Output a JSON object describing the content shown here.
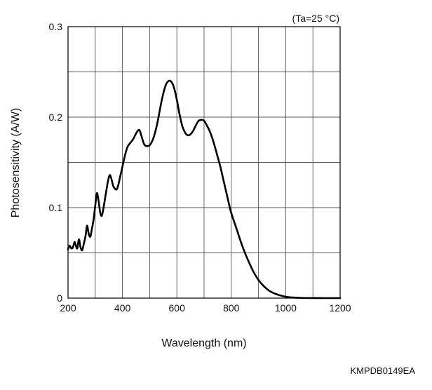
{
  "chart_data": {
    "type": "line",
    "condition_note": "(Ta=25 °C)",
    "document_code": "KMPDB0149EA",
    "xlabel": "Wavelength (nm)",
    "ylabel": "Photosensitivity (A/W)",
    "xlim": [
      200,
      1200
    ],
    "ylim": [
      0,
      0.3
    ],
    "x_ticks": [
      200,
      400,
      600,
      800,
      1000,
      1200
    ],
    "x_tick_labels": [
      "200",
      "400",
      "600",
      "800",
      "1000",
      "1200"
    ],
    "y_ticks": [
      0,
      0.1,
      0.2,
      0.3
    ],
    "y_tick_labels": [
      "0",
      "0.1",
      "0.2",
      "0.3"
    ],
    "x_grid": [
      200,
      300,
      400,
      500,
      600,
      700,
      800,
      900,
      1000,
      1100,
      1200
    ],
    "y_grid": [
      0,
      0.05,
      0.1,
      0.15,
      0.2,
      0.25,
      0.3
    ],
    "grid": true,
    "series": [
      {
        "x": [
          200,
          206,
          212,
          218,
          224,
          229,
          234,
          240,
          246,
          252,
          258,
          264,
          270,
          276,
          282,
          288,
          294,
          300,
          306,
          312,
          318,
          324,
          330,
          336,
          342,
          348,
          354,
          360,
          366,
          372,
          378,
          384,
          390,
          396,
          402,
          408,
          414,
          420,
          430,
          440,
          450,
          460,
          465,
          470,
          480,
          490,
          500,
          510,
          520,
          530,
          540,
          550,
          560,
          570,
          580,
          590,
          600,
          610,
          620,
          630,
          640,
          650,
          660,
          670,
          680,
          690,
          700,
          710,
          720,
          730,
          740,
          750,
          760,
          770,
          780,
          790,
          800,
          820,
          840,
          860,
          880,
          900,
          920,
          940,
          960,
          980,
          1000,
          1020,
          1040,
          1060,
          1080,
          1100,
          1120,
          1140,
          1160,
          1180,
          1200
        ],
        "y": [
          0.054,
          0.058,
          0.055,
          0.056,
          0.062,
          0.058,
          0.055,
          0.065,
          0.056,
          0.053,
          0.06,
          0.068,
          0.08,
          0.071,
          0.068,
          0.077,
          0.087,
          0.102,
          0.116,
          0.108,
          0.095,
          0.091,
          0.099,
          0.11,
          0.121,
          0.131,
          0.136,
          0.131,
          0.124,
          0.121,
          0.12,
          0.124,
          0.132,
          0.14,
          0.148,
          0.156,
          0.163,
          0.168,
          0.172,
          0.176,
          0.182,
          0.186,
          0.184,
          0.179,
          0.17,
          0.168,
          0.169,
          0.174,
          0.183,
          0.196,
          0.212,
          0.226,
          0.236,
          0.24,
          0.239,
          0.232,
          0.219,
          0.203,
          0.19,
          0.183,
          0.18,
          0.181,
          0.185,
          0.191,
          0.196,
          0.197,
          0.196,
          0.191,
          0.185,
          0.177,
          0.167,
          0.156,
          0.145,
          0.132,
          0.119,
          0.106,
          0.094,
          0.076,
          0.058,
          0.043,
          0.03,
          0.02,
          0.013,
          0.008,
          0.005,
          0.003,
          0.0015,
          0.0008,
          0.0004,
          0.0002,
          0.0001,
          5e-05,
          2e-05,
          1e-05,
          0.0,
          0.0,
          0.0
        ]
      }
    ]
  }
}
